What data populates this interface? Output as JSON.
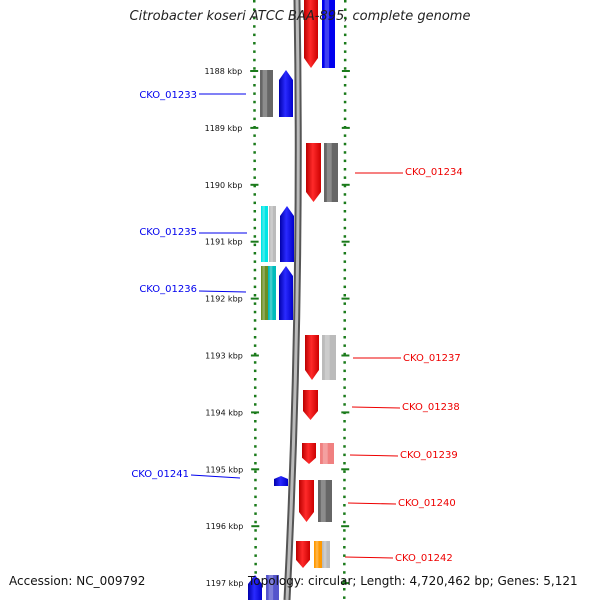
{
  "title": "Citrobacter koseri ATCC BAA-895, complete genome",
  "footer": {
    "accession": "Accession: NC_009792",
    "topology": "Topology: circular; Length: 4,720,462 bp; Genes: 5,121"
  },
  "ruler": {
    "ticks": [
      "1188 kbp",
      "1189 kbp",
      "1190 kbp",
      "1191 kbp",
      "1192 kbp",
      "1193 kbp",
      "1194 kbp",
      "1195 kbp",
      "1196 kbp",
      "1197 kbp"
    ]
  },
  "colors": {
    "forward_strand": "#0000ee",
    "reverse_strand": "#ee0000",
    "ruler": "#1a7a1a",
    "backbone": "#888888"
  },
  "genes": [
    {
      "label": "CKO_01233",
      "strand": "forward",
      "extra_colors": [
        "#666666"
      ]
    },
    {
      "label": "CKO_01234",
      "strand": "reverse",
      "extra_colors": [
        "#666666"
      ]
    },
    {
      "label": "CKO_01235",
      "strand": "forward",
      "extra_colors": [
        "#00e5e5",
        "#bbbbbb"
      ]
    },
    {
      "label": "CKO_01236",
      "strand": "forward",
      "extra_colors": [
        "#6b8e23",
        "#00bbbb"
      ]
    },
    {
      "label": "CKO_01237",
      "strand": "reverse",
      "extra_colors": [
        "#bbbbbb"
      ]
    },
    {
      "label": "CKO_01238",
      "strand": "reverse",
      "extra_colors": []
    },
    {
      "label": "CKO_01239",
      "strand": "reverse",
      "extra_colors": [
        "#f08080"
      ]
    },
    {
      "label": "CKO_01241",
      "strand": "forward",
      "extra_colors": []
    },
    {
      "label": "CKO_01240",
      "strand": "reverse",
      "extra_colors": [
        "#666666"
      ]
    },
    {
      "label": "CKO_01242",
      "strand": "reverse",
      "extra_colors": [
        "#ff9900",
        "#bbbbbb"
      ]
    }
  ]
}
